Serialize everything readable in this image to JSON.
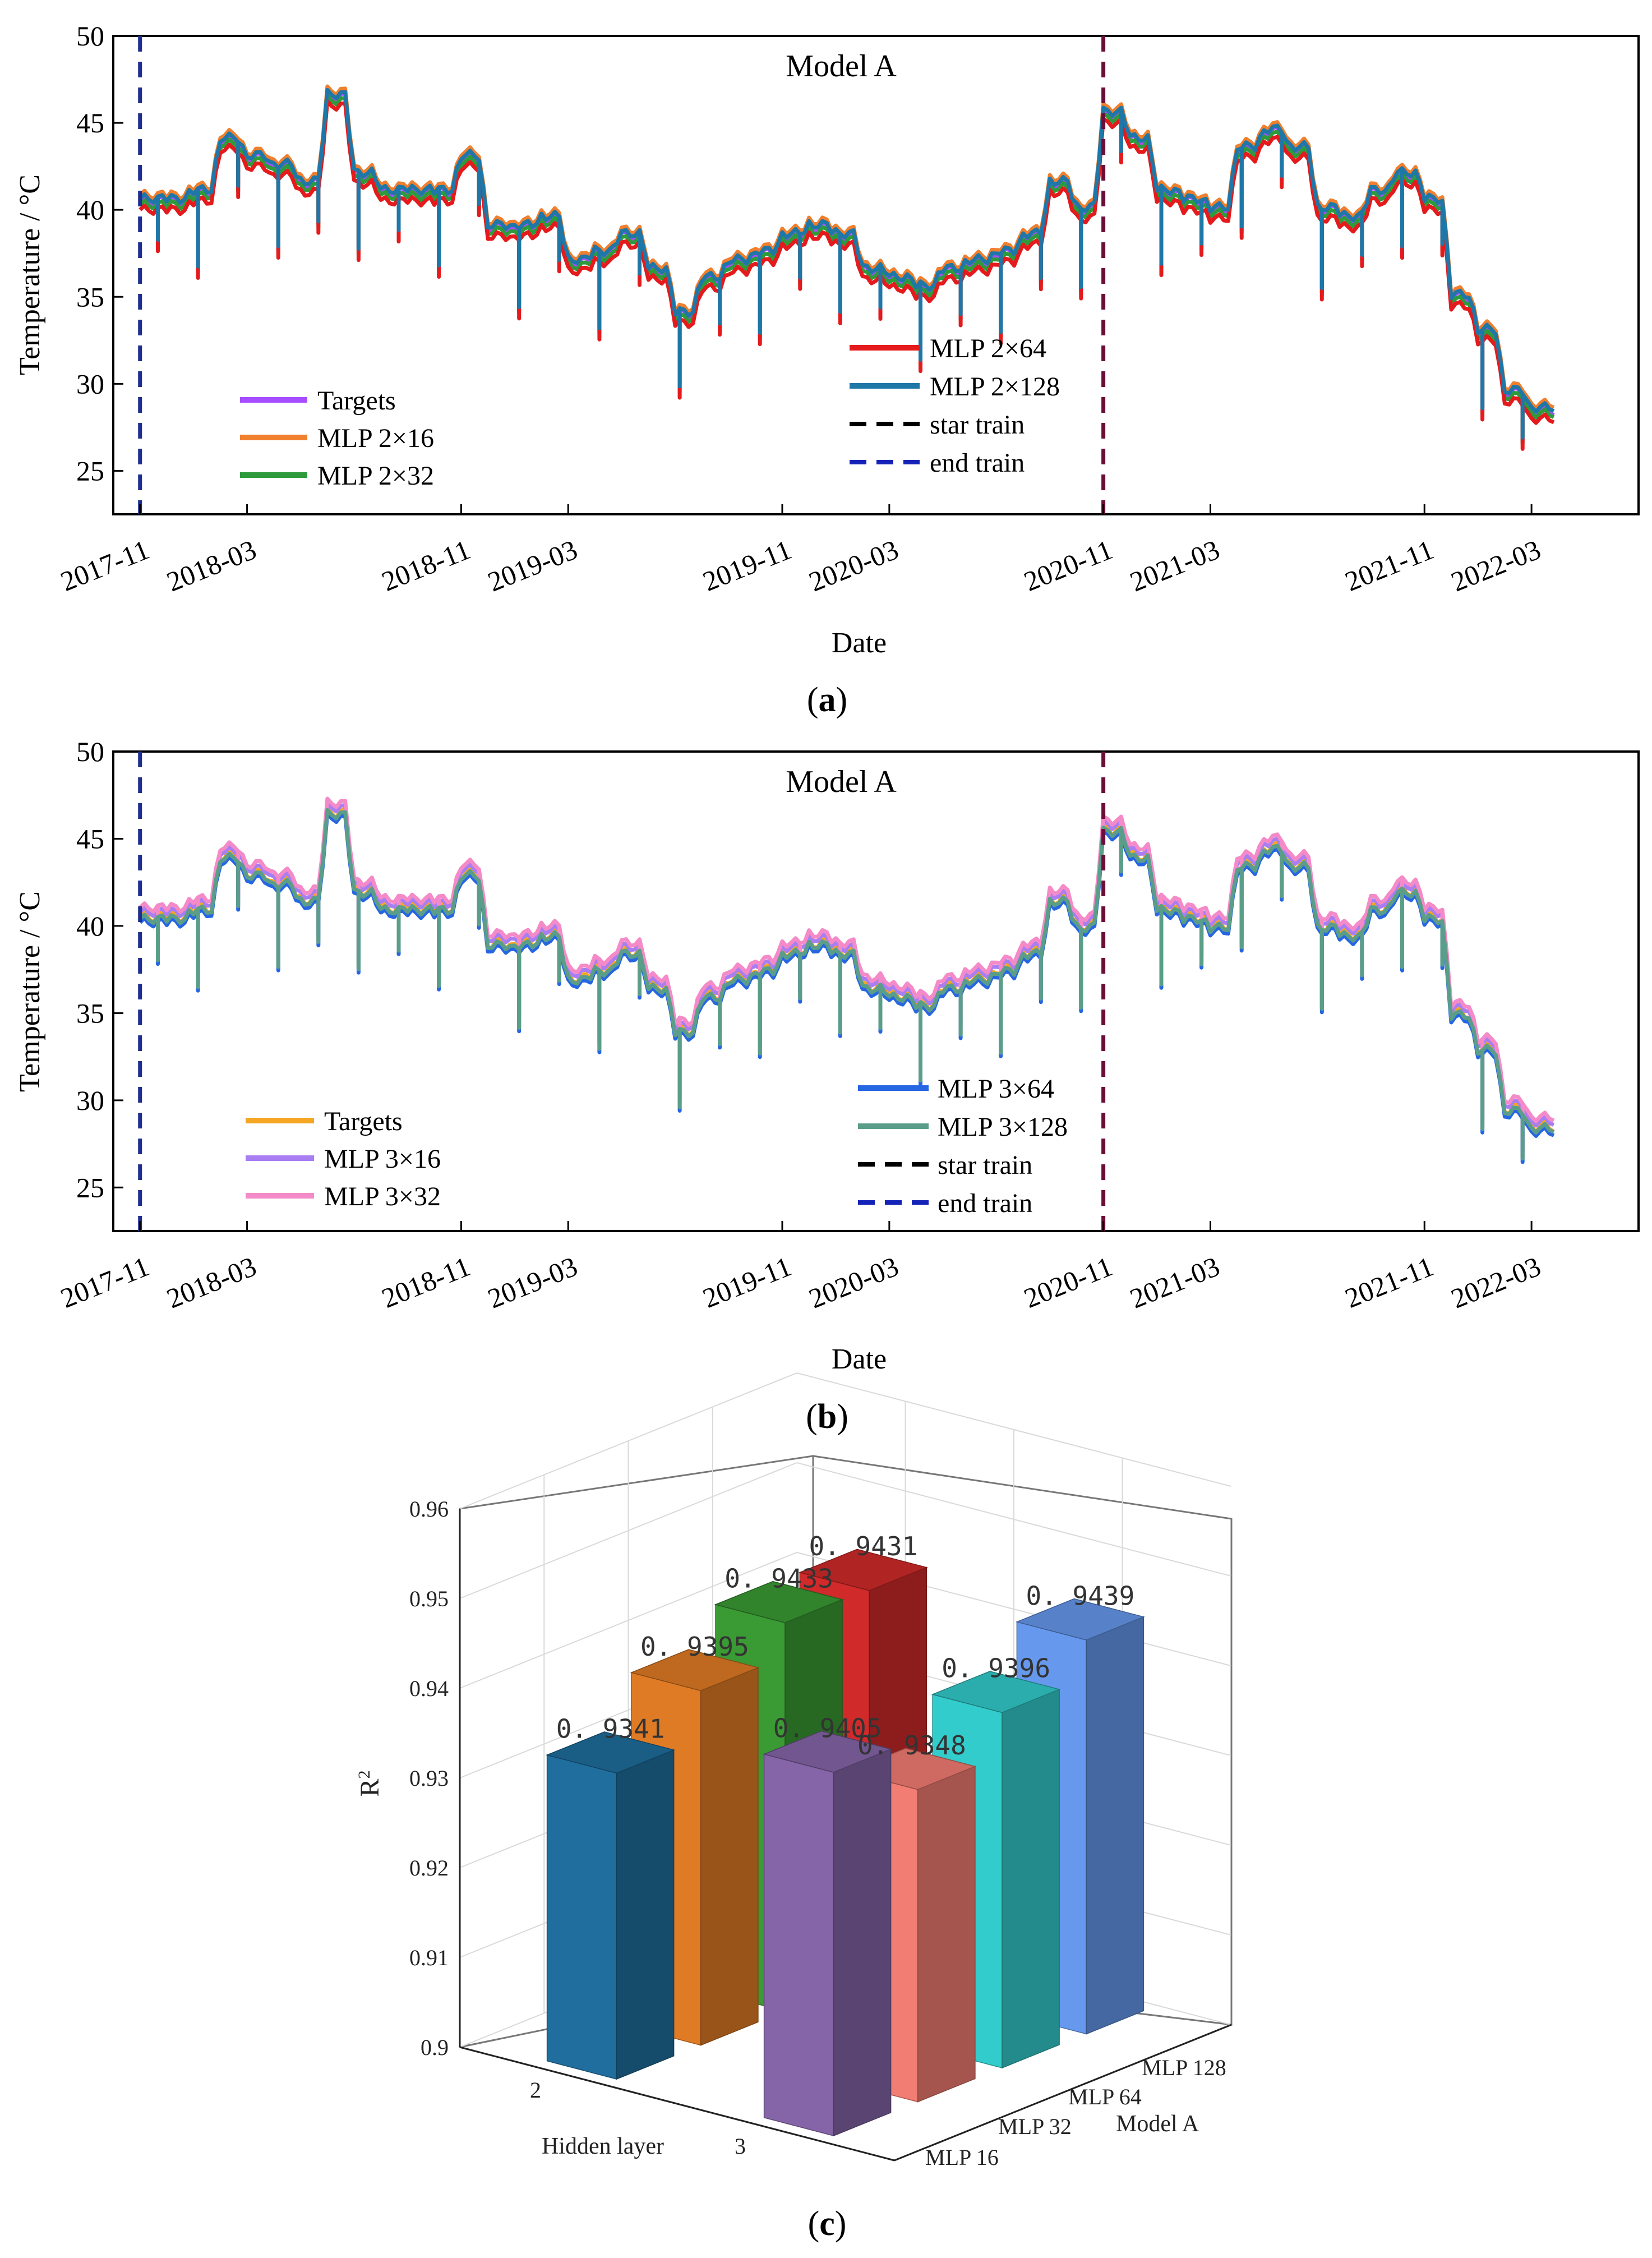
{
  "colors": {
    "a_targets": "#a64dff",
    "a_s16": "#f07f2e",
    "a_s32": "#2e9a3c",
    "a_s64": "#e41a1c",
    "a_s128": "#1f77a8",
    "b_targets": "#f5a623",
    "b_s16": "#a97ef2",
    "b_s32": "#f58ac8",
    "b_s64": "#2766e3",
    "b_s128": "#5a9e8a",
    "star_line": "#6b0f3a",
    "end_line": "#1f2f8f"
  },
  "chart_data": [
    {
      "type": "line",
      "panel_label": "(a)",
      "title": "Model A",
      "xlabel": "Date",
      "ylabel": "Temperature / °C",
      "x_range": [
        "2017-10",
        "2022-07"
      ],
      "ylim": [
        22.5,
        50
      ],
      "y_ticks": [
        "25",
        "30",
        "35",
        "40",
        "45",
        "50"
      ],
      "x_ticks": [
        "2017-11",
        "2018-03",
        "2018-11",
        "2019-03",
        "2019-11",
        "2020-03",
        "2020-11",
        "2021-03",
        "2021-11",
        "2022-03"
      ],
      "legend": [
        "Targets",
        "MLP 2×16",
        "MLP 2×32",
        "MLP 2×64",
        "MLP 2×128",
        "star train",
        "end train"
      ],
      "vlines": [
        {
          "name": "end train",
          "x": "2017-11"
        },
        {
          "name": "star train",
          "x": "2020-11"
        }
      ],
      "approx_targets_series": {
        "x": [
          "2017-11",
          "2017-12",
          "2018-01",
          "2018-02",
          "2018-03",
          "2018-04",
          "2018-05",
          "2018-06",
          "2018-07",
          "2018-08",
          "2018-09",
          "2018-10",
          "2018-11",
          "2018-12",
          "2019-01",
          "2019-02",
          "2019-03",
          "2019-04",
          "2019-05",
          "2019-06",
          "2019-07",
          "2019-08",
          "2019-09",
          "2019-10",
          "2019-11",
          "2019-12",
          "2020-01",
          "2020-02",
          "2020-03",
          "2020-04",
          "2020-05",
          "2020-06",
          "2020-07",
          "2020-08",
          "2020-09",
          "2020-10",
          "2020-11",
          "2020-12",
          "2021-01",
          "2021-02",
          "2021-03",
          "2021-04",
          "2021-05",
          "2021-06",
          "2021-07",
          "2021-08",
          "2021-09",
          "2021-10",
          "2021-11",
          "2021-12",
          "2022-01",
          "2022-02",
          "2022-03"
        ],
        "y": [
          40.5,
          40.5,
          41.0,
          44.0,
          43.0,
          42.5,
          41.5,
          46.5,
          42.0,
          41.0,
          41.0,
          41.0,
          43.0,
          39.0,
          39.0,
          39.5,
          37.0,
          37.5,
          38.5,
          36.5,
          34.0,
          36.0,
          37.0,
          37.5,
          38.5,
          39.0,
          38.5,
          36.5,
          36.0,
          35.5,
          36.5,
          37.0,
          37.5,
          38.5,
          41.5,
          40.0,
          45.5,
          44.0,
          41.0,
          40.5,
          40.0,
          43.5,
          44.5,
          43.5,
          40.0,
          39.5,
          41.0,
          42.0,
          40.5,
          35.0,
          33.0,
          29.5,
          28.5
        ]
      },
      "approx_spread": {
        "MLP 2×16": 0.35,
        "MLP 2×32": -0.2,
        "MLP 2×64": -0.5,
        "MLP 2×128": 0.15
      }
    },
    {
      "type": "line",
      "panel_label": "(b)",
      "title": "Model A",
      "xlabel": "Date",
      "ylabel": "Temperature / °C",
      "x_range": [
        "2017-10",
        "2022-07"
      ],
      "ylim": [
        22.5,
        50
      ],
      "y_ticks": [
        "25",
        "30",
        "35",
        "40",
        "45",
        "50"
      ],
      "x_ticks": [
        "2017-11",
        "2018-03",
        "2018-11",
        "2019-03",
        "2019-11",
        "2020-03",
        "2020-11",
        "2021-03",
        "2021-11",
        "2022-03"
      ],
      "legend": [
        "Targets",
        "MLP 3×16",
        "MLP 3×32",
        "MLP 3×64",
        "MLP 3×128",
        "star train",
        "end train"
      ],
      "vlines": [
        {
          "name": "end train",
          "x": "2017-11"
        },
        {
          "name": "star train",
          "x": "2020-11"
        }
      ],
      "approx_targets_series": {
        "x": [
          "2017-11",
          "2017-12",
          "2018-01",
          "2018-02",
          "2018-03",
          "2018-04",
          "2018-05",
          "2018-06",
          "2018-07",
          "2018-08",
          "2018-09",
          "2018-10",
          "2018-11",
          "2018-12",
          "2019-01",
          "2019-02",
          "2019-03",
          "2019-04",
          "2019-05",
          "2019-06",
          "2019-07",
          "2019-08",
          "2019-09",
          "2019-10",
          "2019-11",
          "2019-12",
          "2020-01",
          "2020-02",
          "2020-03",
          "2020-04",
          "2020-05",
          "2020-06",
          "2020-07",
          "2020-08",
          "2020-09",
          "2020-10",
          "2020-11",
          "2020-12",
          "2021-01",
          "2021-02",
          "2021-03",
          "2021-04",
          "2021-05",
          "2021-06",
          "2021-07",
          "2021-08",
          "2021-09",
          "2021-10",
          "2021-11",
          "2021-12",
          "2022-01",
          "2022-02",
          "2022-03"
        ],
        "y": [
          40.5,
          40.5,
          41.0,
          44.0,
          43.0,
          42.5,
          41.5,
          46.5,
          42.0,
          41.0,
          41.0,
          41.0,
          43.0,
          39.0,
          39.0,
          39.5,
          37.0,
          37.5,
          38.5,
          36.5,
          34.0,
          36.0,
          37.0,
          37.5,
          38.5,
          39.0,
          38.5,
          36.5,
          36.0,
          35.5,
          36.5,
          37.0,
          37.5,
          38.5,
          41.5,
          40.0,
          45.5,
          44.0,
          41.0,
          40.5,
          40.0,
          43.5,
          44.5,
          43.5,
          40.0,
          39.5,
          41.0,
          42.0,
          40.5,
          35.0,
          33.0,
          29.5,
          28.5
        ]
      },
      "approx_spread": {
        "MLP 3×16": 0.3,
        "MLP 3×32": 0.55,
        "MLP 3×64": -0.3,
        "MLP 3×128": -0.1
      }
    },
    {
      "type": "bar3d",
      "panel_label": "(c)",
      "zlabel": "R²",
      "xlabel": "Hidden layer",
      "ylabel": "Model A",
      "zlim": [
        0.9,
        0.96
      ],
      "z_ticks": [
        "0.9",
        "0.91",
        "0.92",
        "0.93",
        "0.94",
        "0.95",
        "0.96"
      ],
      "hidden_layers": [
        "2",
        "3"
      ],
      "models": [
        "MLP 16",
        "MLP 32",
        "MLP 64",
        "MLP 128"
      ],
      "bars": [
        {
          "hidden": "2",
          "model": "MLP 16",
          "value": 0.9341,
          "label": "0. 9341",
          "color": "#1f6e9e"
        },
        {
          "hidden": "2",
          "model": "MLP 32",
          "value": 0.9395,
          "label": "0. 9395",
          "color": "#e07b25"
        },
        {
          "hidden": "2",
          "model": "MLP 64",
          "value": 0.9433,
          "label": "0. 9433",
          "color": "#3a9a34"
        },
        {
          "hidden": "2",
          "model": "MLP 128",
          "value": 0.9431,
          "label": "0. 9431",
          "color": "#d02a2a"
        },
        {
          "hidden": "3",
          "model": "MLP 16",
          "value": 0.9405,
          "label": "0. 9405",
          "color": "#8565a8"
        },
        {
          "hidden": "3",
          "model": "MLP 32",
          "value": 0.9348,
          "label": "0. 9348",
          "color": "#f27d72"
        },
        {
          "hidden": "3",
          "model": "MLP 64",
          "value": 0.9396,
          "label": "0. 9396",
          "color": "#33cccc"
        },
        {
          "hidden": "3",
          "model": "MLP 128",
          "value": 0.9439,
          "label": "0. 9439",
          "color": "#6699ee"
        }
      ]
    }
  ]
}
